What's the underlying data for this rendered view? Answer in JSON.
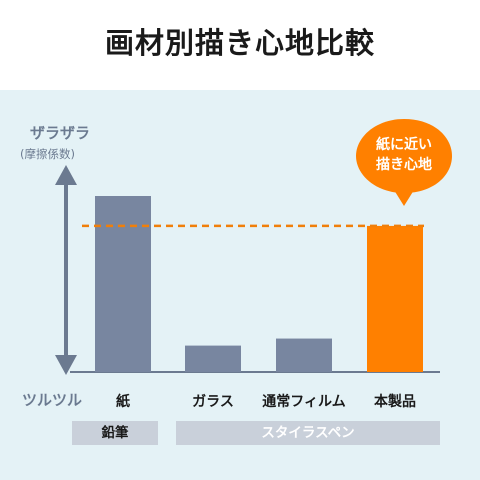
{
  "header": {
    "title": "画材別描き心地比較"
  },
  "chart_data": {
    "type": "bar",
    "title": "画材別描き心地比較",
    "categories": [
      "紙",
      "ガラス",
      "通常フィルム",
      "本製品"
    ],
    "values": [
      100,
      15,
      19,
      83
    ],
    "ylabel_top": "ザラザラ",
    "ylabel_sub": "(摩擦係数)",
    "ylabel_bottom": "ツルツル",
    "groups": [
      {
        "label": "鉛筆",
        "categories": [
          "紙"
        ]
      },
      {
        "label": "スタイラスペン",
        "categories": [
          "ガラス",
          "通常フィルム",
          "本製品"
        ]
      }
    ],
    "reference_line": {
      "value": 83,
      "style": "dashed",
      "color": "#f07f0a"
    },
    "annotation": {
      "line1": "紙に近い",
      "line2": "描き心地",
      "target": "本製品"
    },
    "colors": {
      "default": "#7886a0",
      "highlight": "#ff8000"
    },
    "highlight": "本製品",
    "ylim": [
      0,
      100
    ]
  }
}
